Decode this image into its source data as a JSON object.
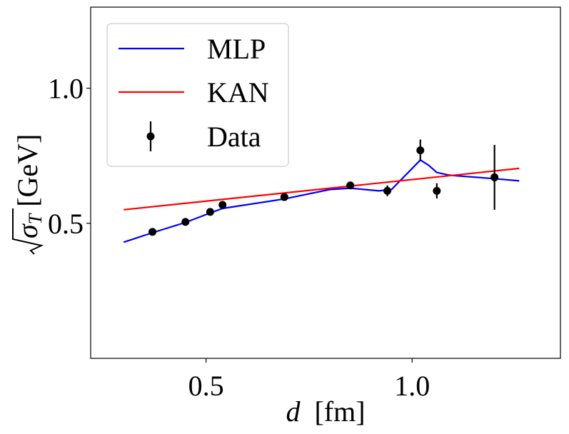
{
  "chart_data": {
    "type": "line",
    "xlabel_var": "d",
    "xlabel_unit": "[fm]",
    "ylabel_sym": "σ",
    "ylabel_sub": "T",
    "ylabel_unit": "[GeV]",
    "xlim": [
      0.22,
      1.36
    ],
    "ylim": [
      0.0,
      1.3
    ],
    "x_ticks": [
      0.5,
      1.0
    ],
    "x_tick_labels": [
      "0.5",
      "1.0"
    ],
    "y_ticks": [
      0.5,
      1.0
    ],
    "y_tick_labels": [
      "0.5",
      "1.0"
    ],
    "grid": false,
    "legend_position": "top-left",
    "series": [
      {
        "name": "MLP",
        "color": "#0000ff",
        "x": [
          0.3,
          0.37,
          0.45,
          0.51,
          0.54,
          0.69,
          0.8,
          0.85,
          0.92,
          0.95,
          1.02,
          1.04,
          1.06,
          1.09,
          1.2,
          1.26
        ],
        "y": [
          0.43,
          0.465,
          0.503,
          0.538,
          0.555,
          0.59,
          0.625,
          0.63,
          0.62,
          0.625,
          0.734,
          0.715,
          0.688,
          0.678,
          0.665,
          0.657
        ]
      },
      {
        "name": "KAN",
        "color": "#ff0000",
        "x": [
          0.3,
          1.26
        ],
        "y": [
          0.55,
          0.703
        ]
      }
    ],
    "data_points": {
      "name": "Data",
      "color": "#000000",
      "points": [
        {
          "x": 0.37,
          "y": 0.468,
          "err": 0.004
        },
        {
          "x": 0.45,
          "y": 0.505,
          "err": 0.004
        },
        {
          "x": 0.51,
          "y": 0.542,
          "err": 0.005
        },
        {
          "x": 0.54,
          "y": 0.568,
          "err": 0.006
        },
        {
          "x": 0.69,
          "y": 0.597,
          "err": 0.006
        },
        {
          "x": 0.85,
          "y": 0.64,
          "err": 0.012
        },
        {
          "x": 0.94,
          "y": 0.62,
          "err": 0.02
        },
        {
          "x": 1.02,
          "y": 0.77,
          "err": 0.04
        },
        {
          "x": 1.06,
          "y": 0.62,
          "err": 0.028
        },
        {
          "x": 1.2,
          "y": 0.67,
          "err": 0.12
        }
      ]
    }
  }
}
